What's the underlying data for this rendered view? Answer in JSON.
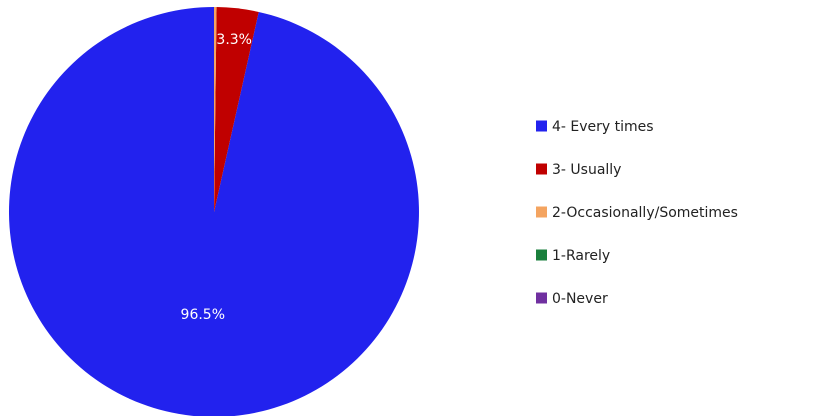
{
  "chart_data": {
    "type": "pie",
    "title": "",
    "legend_position": "right",
    "slices": [
      {
        "label": "4- Every times",
        "value": 96.5,
        "display": "96.5%",
        "color": "#2222ee"
      },
      {
        "label": "3- Usually",
        "value": 3.3,
        "display": "3.3%",
        "color": "#c00000"
      },
      {
        "label": "2-Occasionally/Sometimes",
        "value": 0.2,
        "display": "",
        "color": "#f4a460"
      },
      {
        "label": "1-Rarely",
        "value": 0,
        "display": "",
        "color": "#1a7f3c"
      },
      {
        "label": "0-Never",
        "value": 0,
        "display": "",
        "color": "#7030a0"
      }
    ]
  }
}
